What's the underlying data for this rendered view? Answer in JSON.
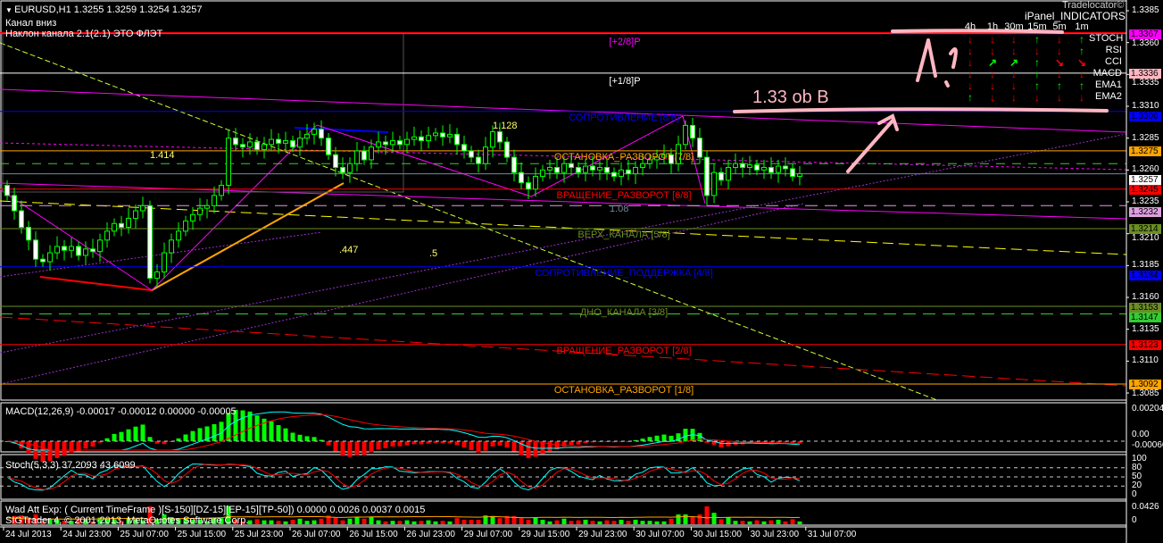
{
  "header": {
    "symbol_menu_icon": "triangle-down-icon",
    "title": "EURUSD,H1  1.3255 1.3259 1.3254 1.3257",
    "line2": "Канал  вниз",
    "line3": "Наклон канала 2.1(2.1)      ЭТО ФЛЭТ"
  },
  "ipanel": {
    "title": "iPanel_INDICATORS",
    "watermark": "Tradelocator©",
    "timeframes": [
      "4h",
      "1h",
      "30m",
      "15m",
      "5m",
      "1m"
    ],
    "rows": [
      {
        "name": "STOCH",
        "signals": [
          "down",
          "down",
          "down",
          "up",
          "down",
          "up"
        ]
      },
      {
        "name": "RSI",
        "signals": [
          "down",
          "down",
          "down",
          "down",
          "down",
          "up"
        ]
      },
      {
        "name": "CCI",
        "signals": [
          "down",
          "up-right",
          "up-right",
          "up",
          "down-right",
          "down-right"
        ]
      },
      {
        "name": "MACD",
        "signals": [
          "down",
          "down",
          "down",
          "up",
          "down",
          "down"
        ]
      },
      {
        "name": "EMA1",
        "signals": [
          "down",
          "down",
          "down",
          "up",
          "up",
          "up"
        ]
      },
      {
        "name": "EMA2",
        "signals": [
          "up",
          "down",
          "down",
          "down",
          "down",
          "down"
        ]
      }
    ],
    "colors": {
      "up": "#00ff00",
      "down": "#ff0000"
    }
  },
  "murrey_levels": [
    {
      "label": "[+2/8]P",
      "price": 1.3367,
      "color": "#ff00ff"
    },
    {
      "label": "[+1/8]P",
      "price": 1.3336,
      "color": "#ffffff"
    },
    {
      "label": "СОПРОТИВЛЕНИЕ [8/8]",
      "price": 1.3306,
      "color": "#0000ff"
    },
    {
      "label": "ОСТАНОВКА_РАЗВОРОТ [7/8]",
      "price": 1.3275,
      "color": "#ffa500"
    },
    {
      "label": "ВРАЩЕНИЕ_РАЗВОРОТ [6/8]",
      "price": 1.3245,
      "color": "#ff0000"
    },
    {
      "label": "ВЕРХ_КАНАЛА [5/8]",
      "price": 1.3214,
      "color": "#6b8e23"
    },
    {
      "label": "СОПРОТИВЛЕНИЕ_ПОДДЕРЖКА [4/8]",
      "price": 1.3184,
      "color": "#0000ff"
    },
    {
      "label": "ДНО_КАНАЛА [3/8]",
      "price": 1.3153,
      "color": "#6b8e23"
    },
    {
      "label": "ВРАЩЕНИЕ_РАЗВОРОТ [2/8]",
      "price": 1.3123,
      "color": "#ff0000"
    },
    {
      "label": "ОСТАНОВКА_РАЗВОРОТ [1/8]",
      "price": 1.3092,
      "color": "#ffa500"
    }
  ],
  "fib_labels": [
    "1.414",
    "1.128",
    ".447",
    ".5",
    "1.08"
  ],
  "annotation": "1.33 ob B",
  "price_axis": {
    "ticks": [
      "1.3385",
      "1.3360",
      "1.3335",
      "1.3310",
      "1.3285",
      "1.3260",
      "1.3235",
      "1.3210",
      "1.3185",
      "1.3160",
      "1.3135",
      "1.3110",
      "1.3085"
    ],
    "tags": [
      {
        "text": "1.3367",
        "bg": "#ff00ff",
        "fg": "#000000"
      },
      {
        "text": "1.3336",
        "bg": "#ffb6c1",
        "fg": "#000000"
      },
      {
        "text": "1.3306",
        "bg": "#0000ff",
        "fg": "#000000"
      },
      {
        "text": "1.3275",
        "bg": "#ffa500",
        "fg": "#000000"
      },
      {
        "text": "1.3257",
        "bg": "#ffffff",
        "fg": "#000000"
      },
      {
        "text": "1.3245",
        "bg": "#ff0000",
        "fg": "#000000"
      },
      {
        "text": "1.3232",
        "bg": "#dda0dd",
        "fg": "#000000"
      },
      {
        "text": "1.3214",
        "bg": "#6b8e23",
        "fg": "#000000"
      },
      {
        "text": "1.3184",
        "bg": "#0000ff",
        "fg": "#000000"
      },
      {
        "text": "1.3153",
        "bg": "#6b8e23",
        "fg": "#000000"
      },
      {
        "text": "1.3147",
        "bg": "#32cd32",
        "fg": "#000000"
      },
      {
        "text": "1.3123",
        "bg": "#ff0000",
        "fg": "#000000"
      },
      {
        "text": "1.3092",
        "bg": "#ffa500",
        "fg": "#000000"
      }
    ]
  },
  "closes": [
    1.324,
    1.3228,
    1.3215,
    1.3205,
    1.319,
    1.3188,
    1.3195,
    1.32,
    1.3197,
    1.32,
    1.3193,
    1.3198,
    1.3196,
    1.3205,
    1.3212,
    1.3218,
    1.3215,
    1.3222,
    1.3228,
    1.3232,
    1.3175,
    1.318,
    1.3195,
    1.3205,
    1.3212,
    1.322,
    1.3225,
    1.323,
    1.3232,
    1.324,
    1.3248,
    1.3285,
    1.328,
    1.3278,
    1.3282,
    1.3276,
    1.328,
    1.3284,
    1.3281,
    1.3283,
    1.3278,
    1.3285,
    1.3288,
    1.3292,
    1.3285,
    1.3272,
    1.3262,
    1.3258,
    1.3265,
    1.3275,
    1.3268,
    1.3278,
    1.3282,
    1.328,
    1.3283,
    1.328,
    1.3284,
    1.3286,
    1.3283,
    1.3287,
    1.3289,
    1.3286,
    1.3288,
    1.328,
    1.3275,
    1.327,
    1.3265,
    1.3278,
    1.329,
    1.3282,
    1.327,
    1.3258,
    1.325,
    1.3245,
    1.3255,
    1.326,
    1.3262,
    1.3258,
    1.3265,
    1.3262,
    1.3258,
    1.3263,
    1.326,
    1.3262,
    1.3258,
    1.3255,
    1.326,
    1.3257,
    1.3262,
    1.3265,
    1.3268,
    1.327,
    1.3272,
    1.3265,
    1.328,
    1.3295,
    1.3285,
    1.327,
    1.324,
    1.3258,
    1.3252,
    1.3262,
    1.3265,
    1.3262,
    1.3264,
    1.326,
    1.3262,
    1.3258,
    1.3263,
    1.3261,
    1.3255,
    1.3257
  ],
  "macd": {
    "label": "MACD(12,26,9) -0.00017 -0.00012 0.00000 -0.00005",
    "scale": [
      "0.00204",
      "0.00",
      "-0.00066"
    ]
  },
  "stoch": {
    "label": "Stoch(5,3,3) 37.2093 43.6099",
    "scale": [
      "100",
      "80",
      "50",
      "20",
      "0"
    ]
  },
  "wad": {
    "label": "Wad Att Exp: ( Current TimeFrame )[S-150][DZ-15][EP-15][TP-50]) 0.0000 0.0026 0.0037 0.0015",
    "line2": "SIGTrader 4, © 2001-2013, MetaQuotes Software Corp.",
    "scale": [
      "0.0426",
      "0"
    ]
  },
  "time_axis": [
    "24 Jul 2013",
    "24 Jul 23:00",
    "25 Jul 07:00",
    "25 Jul 15:00",
    "25 Jul 23:00",
    "26 Jul 07:00",
    "26 Jul 15:00",
    "26 Jul 23:00",
    "29 Jul 07:00",
    "29 Jul 15:00",
    "29 Jul 23:00",
    "30 Jul 07:00",
    "30 Jul 15:00",
    "30 Jul 23:00",
    "31 Jul 07:00"
  ]
}
